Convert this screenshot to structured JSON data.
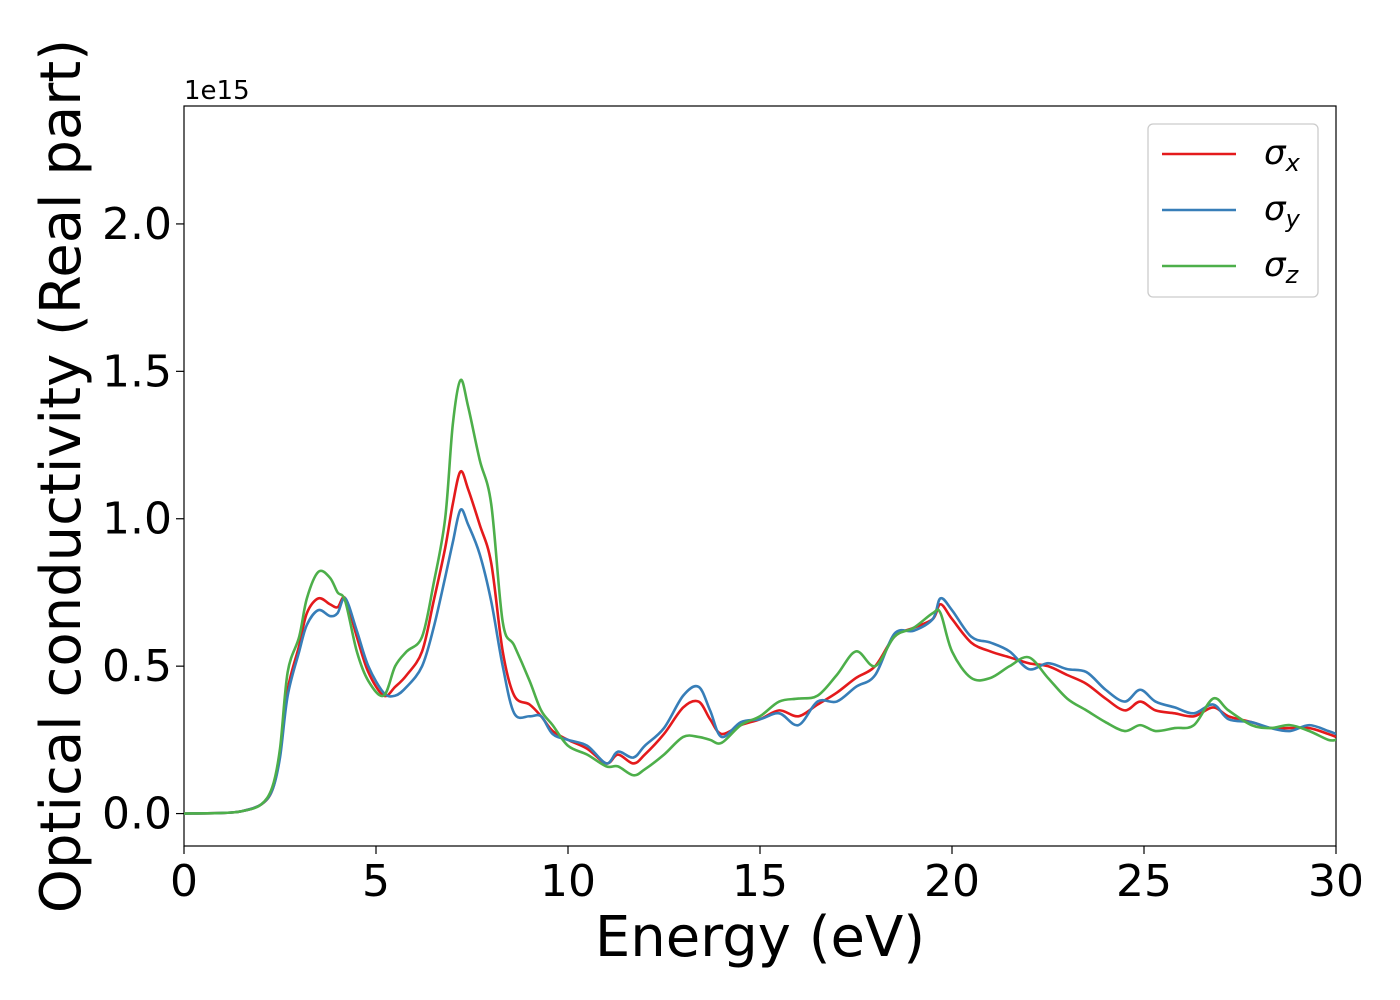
{
  "chart_data": {
    "type": "line",
    "title": "",
    "xlabel": "Energy (eV)",
    "ylabel": "Optical conductivity (Real part)",
    "y_offset_text": "1e15",
    "xlim": [
      0,
      30
    ],
    "ylim": [
      -0.11,
      2.4
    ],
    "x_ticks": [
      0,
      5,
      10,
      15,
      20,
      25,
      30
    ],
    "x_tick_labels": [
      "0",
      "5",
      "10",
      "15",
      "20",
      "25",
      "30"
    ],
    "y_ticks": [
      0.0,
      0.5,
      1.0,
      1.5,
      2.0
    ],
    "y_tick_labels": [
      "0.0",
      "0.5",
      "1.0",
      "1.5",
      "2.0"
    ],
    "grid": false,
    "legend_position": "top-right",
    "series": [
      {
        "name": "σx",
        "legend_main": "σ",
        "legend_sub": "x",
        "color": "#e41a1c",
        "points": [
          [
            0,
            0
          ],
          [
            1,
            0.002
          ],
          [
            1.5,
            0.008
          ],
          [
            2,
            0.03
          ],
          [
            2.3,
            0.08
          ],
          [
            2.5,
            0.2
          ],
          [
            2.7,
            0.42
          ],
          [
            3,
            0.57
          ],
          [
            3.2,
            0.68
          ],
          [
            3.5,
            0.73
          ],
          [
            3.8,
            0.71
          ],
          [
            4,
            0.7
          ],
          [
            4.2,
            0.73
          ],
          [
            4.5,
            0.6
          ],
          [
            4.8,
            0.48
          ],
          [
            5.2,
            0.4
          ],
          [
            5.5,
            0.43
          ],
          [
            5.8,
            0.47
          ],
          [
            6.2,
            0.55
          ],
          [
            6.5,
            0.72
          ],
          [
            6.8,
            0.9
          ],
          [
            7.0,
            1.05
          ],
          [
            7.2,
            1.16
          ],
          [
            7.4,
            1.1
          ],
          [
            7.7,
            0.98
          ],
          [
            8.0,
            0.85
          ],
          [
            8.3,
            0.55
          ],
          [
            8.6,
            0.4
          ],
          [
            9.0,
            0.37
          ],
          [
            9.3,
            0.33
          ],
          [
            9.6,
            0.28
          ],
          [
            10,
            0.25
          ],
          [
            10.5,
            0.22
          ],
          [
            11,
            0.17
          ],
          [
            11.3,
            0.2
          ],
          [
            11.7,
            0.17
          ],
          [
            12,
            0.2
          ],
          [
            12.5,
            0.27
          ],
          [
            13,
            0.36
          ],
          [
            13.4,
            0.38
          ],
          [
            13.7,
            0.32
          ],
          [
            14,
            0.27
          ],
          [
            14.5,
            0.3
          ],
          [
            15,
            0.32
          ],
          [
            15.5,
            0.35
          ],
          [
            16,
            0.33
          ],
          [
            16.5,
            0.37
          ],
          [
            17,
            0.41
          ],
          [
            17.5,
            0.46
          ],
          [
            18,
            0.5
          ],
          [
            18.5,
            0.6
          ],
          [
            19,
            0.63
          ],
          [
            19.5,
            0.66
          ],
          [
            19.7,
            0.71
          ],
          [
            20,
            0.66
          ],
          [
            20.5,
            0.58
          ],
          [
            21,
            0.55
          ],
          [
            21.5,
            0.53
          ],
          [
            22,
            0.51
          ],
          [
            22.5,
            0.5
          ],
          [
            23,
            0.47
          ],
          [
            23.5,
            0.44
          ],
          [
            24,
            0.39
          ],
          [
            24.5,
            0.35
          ],
          [
            24.9,
            0.38
          ],
          [
            25.3,
            0.35
          ],
          [
            25.8,
            0.34
          ],
          [
            26.3,
            0.33
          ],
          [
            26.8,
            0.36
          ],
          [
            27.2,
            0.33
          ],
          [
            27.8,
            0.31
          ],
          [
            28.3,
            0.29
          ],
          [
            28.8,
            0.29
          ],
          [
            29.3,
            0.29
          ],
          [
            29.8,
            0.27
          ],
          [
            30,
            0.26
          ]
        ]
      },
      {
        "name": "σy",
        "legend_main": "σ",
        "legend_sub": "y",
        "color": "#377eb8",
        "points": [
          [
            0,
            0
          ],
          [
            1,
            0.002
          ],
          [
            1.5,
            0.008
          ],
          [
            2,
            0.03
          ],
          [
            2.3,
            0.08
          ],
          [
            2.5,
            0.19
          ],
          [
            2.7,
            0.4
          ],
          [
            3,
            0.55
          ],
          [
            3.2,
            0.64
          ],
          [
            3.5,
            0.69
          ],
          [
            3.8,
            0.67
          ],
          [
            4,
            0.68
          ],
          [
            4.2,
            0.73
          ],
          [
            4.5,
            0.62
          ],
          [
            4.8,
            0.5
          ],
          [
            5.2,
            0.41
          ],
          [
            5.5,
            0.4
          ],
          [
            5.8,
            0.43
          ],
          [
            6.2,
            0.5
          ],
          [
            6.5,
            0.63
          ],
          [
            6.8,
            0.8
          ],
          [
            7.0,
            0.92
          ],
          [
            7.2,
            1.03
          ],
          [
            7.4,
            0.98
          ],
          [
            7.7,
            0.88
          ],
          [
            8.0,
            0.72
          ],
          [
            8.3,
            0.5
          ],
          [
            8.6,
            0.34
          ],
          [
            9.0,
            0.33
          ],
          [
            9.3,
            0.33
          ],
          [
            9.6,
            0.27
          ],
          [
            10,
            0.25
          ],
          [
            10.5,
            0.23
          ],
          [
            11,
            0.17
          ],
          [
            11.3,
            0.21
          ],
          [
            11.7,
            0.19
          ],
          [
            12,
            0.23
          ],
          [
            12.5,
            0.29
          ],
          [
            13,
            0.4
          ],
          [
            13.4,
            0.43
          ],
          [
            13.7,
            0.35
          ],
          [
            14,
            0.26
          ],
          [
            14.5,
            0.31
          ],
          [
            15,
            0.32
          ],
          [
            15.5,
            0.34
          ],
          [
            16,
            0.3
          ],
          [
            16.5,
            0.38
          ],
          [
            17,
            0.38
          ],
          [
            17.5,
            0.43
          ],
          [
            18,
            0.47
          ],
          [
            18.5,
            0.61
          ],
          [
            19,
            0.62
          ],
          [
            19.5,
            0.66
          ],
          [
            19.7,
            0.73
          ],
          [
            20,
            0.69
          ],
          [
            20.5,
            0.6
          ],
          [
            21,
            0.58
          ],
          [
            21.5,
            0.55
          ],
          [
            22,
            0.49
          ],
          [
            22.5,
            0.51
          ],
          [
            23,
            0.49
          ],
          [
            23.5,
            0.48
          ],
          [
            24,
            0.42
          ],
          [
            24.5,
            0.38
          ],
          [
            24.9,
            0.42
          ],
          [
            25.3,
            0.38
          ],
          [
            25.8,
            0.36
          ],
          [
            26.3,
            0.34
          ],
          [
            26.8,
            0.37
          ],
          [
            27.2,
            0.32
          ],
          [
            27.8,
            0.31
          ],
          [
            28.3,
            0.29
          ],
          [
            28.8,
            0.28
          ],
          [
            29.3,
            0.3
          ],
          [
            29.8,
            0.28
          ],
          [
            30,
            0.27
          ]
        ]
      },
      {
        "name": "σz",
        "legend_main": "σ",
        "legend_sub": "z",
        "color": "#4daf4a",
        "points": [
          [
            0,
            0
          ],
          [
            1,
            0.002
          ],
          [
            1.5,
            0.008
          ],
          [
            2,
            0.03
          ],
          [
            2.3,
            0.09
          ],
          [
            2.5,
            0.22
          ],
          [
            2.7,
            0.48
          ],
          [
            3,
            0.6
          ],
          [
            3.2,
            0.73
          ],
          [
            3.5,
            0.82
          ],
          [
            3.8,
            0.8
          ],
          [
            4,
            0.75
          ],
          [
            4.2,
            0.72
          ],
          [
            4.5,
            0.55
          ],
          [
            4.8,
            0.45
          ],
          [
            5.2,
            0.4
          ],
          [
            5.5,
            0.5
          ],
          [
            5.8,
            0.55
          ],
          [
            6.2,
            0.6
          ],
          [
            6.5,
            0.78
          ],
          [
            6.8,
            1.0
          ],
          [
            7.0,
            1.32
          ],
          [
            7.2,
            1.47
          ],
          [
            7.4,
            1.38
          ],
          [
            7.7,
            1.2
          ],
          [
            8.0,
            1.05
          ],
          [
            8.3,
            0.65
          ],
          [
            8.6,
            0.57
          ],
          [
            9.0,
            0.45
          ],
          [
            9.3,
            0.35
          ],
          [
            9.6,
            0.3
          ],
          [
            10,
            0.23
          ],
          [
            10.5,
            0.2
          ],
          [
            11,
            0.16
          ],
          [
            11.3,
            0.16
          ],
          [
            11.7,
            0.13
          ],
          [
            12,
            0.15
          ],
          [
            12.5,
            0.2
          ],
          [
            13,
            0.26
          ],
          [
            13.4,
            0.26
          ],
          [
            13.7,
            0.25
          ],
          [
            14,
            0.24
          ],
          [
            14.5,
            0.3
          ],
          [
            15,
            0.33
          ],
          [
            15.5,
            0.38
          ],
          [
            16,
            0.39
          ],
          [
            16.5,
            0.4
          ],
          [
            17,
            0.47
          ],
          [
            17.5,
            0.55
          ],
          [
            18,
            0.5
          ],
          [
            18.5,
            0.6
          ],
          [
            19,
            0.63
          ],
          [
            19.5,
            0.68
          ],
          [
            19.7,
            0.68
          ],
          [
            20,
            0.55
          ],
          [
            20.5,
            0.46
          ],
          [
            21,
            0.46
          ],
          [
            21.5,
            0.5
          ],
          [
            22,
            0.53
          ],
          [
            22.5,
            0.46
          ],
          [
            23,
            0.39
          ],
          [
            23.5,
            0.35
          ],
          [
            24,
            0.31
          ],
          [
            24.5,
            0.28
          ],
          [
            24.9,
            0.3
          ],
          [
            25.3,
            0.28
          ],
          [
            25.8,
            0.29
          ],
          [
            26.3,
            0.3
          ],
          [
            26.8,
            0.39
          ],
          [
            27.2,
            0.35
          ],
          [
            27.8,
            0.3
          ],
          [
            28.3,
            0.29
          ],
          [
            28.8,
            0.3
          ],
          [
            29.3,
            0.28
          ],
          [
            29.8,
            0.25
          ],
          [
            30,
            0.25
          ]
        ]
      }
    ]
  }
}
